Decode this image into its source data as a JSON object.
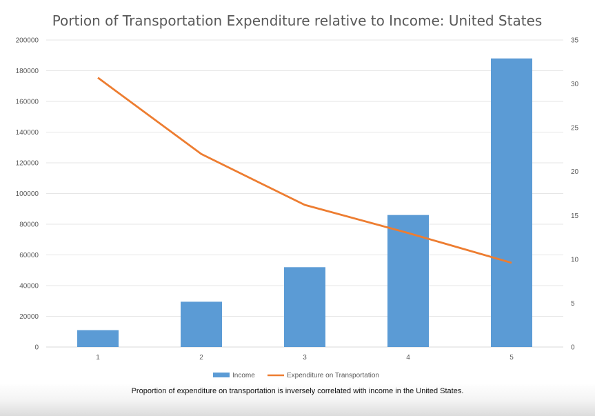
{
  "chart_data": {
    "type": "bar+line",
    "title": "Portion of Transportation Expenditure relative to Income: United States",
    "categories": [
      "1",
      "2",
      "3",
      "4",
      "5"
    ],
    "series": [
      {
        "name": "Income",
        "type": "bar",
        "axis": "left",
        "color": "#5b9bd5",
        "values": [
          11000,
          29500,
          52000,
          86000,
          188000
        ]
      },
      {
        "name": "Expenditure on Transportation",
        "type": "line",
        "axis": "right",
        "color": "#ed7d31",
        "values": [
          30.7,
          22.0,
          16.2,
          13.0,
          9.6
        ]
      }
    ],
    "y_left": {
      "range": [
        0,
        200000
      ],
      "ticks": [
        0,
        20000,
        40000,
        60000,
        80000,
        100000,
        120000,
        140000,
        160000,
        180000,
        200000
      ]
    },
    "y_right": {
      "range": [
        0,
        35
      ],
      "ticks": [
        0,
        5,
        10,
        15,
        20,
        25,
        30,
        35
      ]
    },
    "grid": true,
    "legend": "bottom"
  },
  "caption": "Proportion of expenditure on transportation is inversely correlated with income in the United States."
}
